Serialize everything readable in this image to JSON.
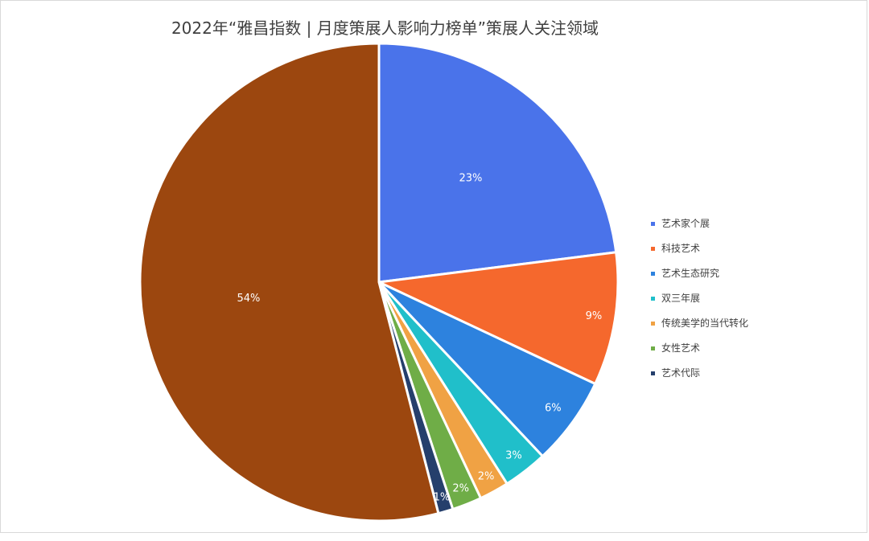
{
  "chart_data": {
    "type": "pie",
    "title": "2022年“雅昌指数 | 月度策展人影响力榜单”策展人关注领域",
    "legend_position": "right",
    "start_angle_deg": 0,
    "direction": "clockwise",
    "slices": [
      {
        "name": "艺术家个展",
        "value": 23,
        "label": "23%",
        "color": "#4a73ea"
      },
      {
        "name": "科技艺术",
        "value": 9,
        "label": "9%",
        "color": "#f5682d"
      },
      {
        "name": "艺术生态研究",
        "value": 6,
        "label": "6%",
        "color": "#2d82de"
      },
      {
        "name": "双三年展",
        "value": 3,
        "label": "3%",
        "color": "#20bfca"
      },
      {
        "name": "传统美学的当代转化",
        "value": 2,
        "label": "2%",
        "color": "#f0a244"
      },
      {
        "name": "女性艺术",
        "value": 2,
        "label": "2%",
        "color": "#6fad47"
      },
      {
        "name": "艺术代际",
        "value": 1,
        "label": "1%",
        "color": "#253f6c"
      },
      {
        "name": "",
        "value": 54,
        "label": "54%",
        "color": "#9c470f"
      }
    ]
  }
}
